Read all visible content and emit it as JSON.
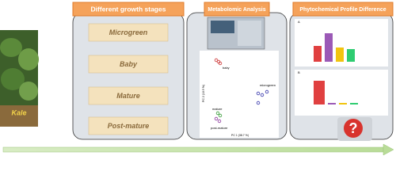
{
  "photo": {
    "label": "Kale"
  },
  "panels": [
    {
      "title": "Different growth stages",
      "items": [
        "Microgreen",
        "Baby",
        "Mature",
        "Post-mature"
      ]
    },
    {
      "title": "Metabolomic Analysis",
      "plot_labels": [
        "baby",
        "microgreen",
        "mature",
        "post-mature"
      ],
      "x_axis": "PC 1 (38.7 %)",
      "y_axis": "PC 2 (18.9 %)"
    },
    {
      "title": "Phytochemical Profile Difference",
      "plot_labels": [
        "A",
        "B"
      ]
    }
  ]
}
